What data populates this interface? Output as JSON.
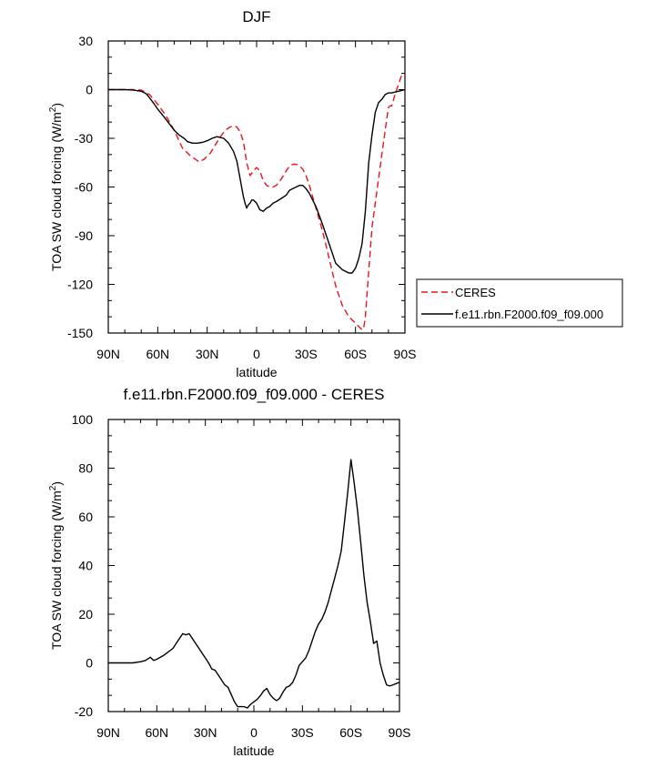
{
  "chart_data": [
    {
      "type": "line",
      "title": "DJF",
      "xlabel": "latitude",
      "ylabel": "TOA SW cloud forcing (W/m2)",
      "ylabel_main": "TOA SW cloud forcing (W/m",
      "ylabel_sup": "2",
      "ylabel_end": ")",
      "xlim": [
        -90,
        90
      ],
      "ylim": [
        -150,
        30
      ],
      "xticks": [
        -90,
        -60,
        -30,
        0,
        30,
        60,
        90
      ],
      "xtick_labels": [
        "90N",
        "60N",
        "30N",
        "0",
        "30S",
        "60S",
        "90S"
      ],
      "yticks": [
        30,
        0,
        -30,
        -60,
        -90,
        -120,
        -150
      ],
      "ytick_labels": [
        "30",
        "0",
        "-30",
        "-60",
        "-90",
        "-120",
        "-150"
      ],
      "legend_position": "right, outside plot",
      "series": [
        {
          "name": "CERES",
          "color": "#e8141c",
          "dash": true,
          "x": [
            -90,
            -80,
            -75,
            -70,
            -65,
            -60,
            -55,
            -50,
            -45,
            -40,
            -37,
            -35,
            -32,
            -28,
            -25,
            -22,
            -19,
            -16,
            -14,
            -12,
            -10,
            -8,
            -6,
            -4,
            -2,
            0,
            2,
            4,
            6,
            8,
            10,
            12,
            15,
            18,
            20,
            22,
            24,
            26,
            28,
            30,
            32,
            34,
            36,
            40,
            44,
            48,
            52,
            56,
            60,
            62,
            64,
            65,
            66,
            68,
            70,
            72,
            74,
            76,
            78,
            80,
            81,
            82,
            84,
            86,
            88,
            90
          ],
          "y": [
            0,
            0,
            0,
            -0.3,
            -3,
            -9,
            -16,
            -25,
            -36,
            -41,
            -43,
            -44.5,
            -43,
            -39,
            -34,
            -29,
            -25,
            -23,
            -22.5,
            -23,
            -26,
            -32,
            -45,
            -53,
            -50,
            -48,
            -50,
            -56,
            -59,
            -60,
            -60,
            -59,
            -55,
            -50,
            -47,
            -46,
            -46,
            -47,
            -49,
            -53,
            -59,
            -66,
            -73,
            -87,
            -104,
            -121,
            -133,
            -140,
            -144,
            -146,
            -148,
            -147,
            -140,
            -112,
            -85,
            -70,
            -55,
            -40,
            -25,
            -11,
            -10,
            -10,
            -3,
            3,
            9,
            9
          ]
        },
        {
          "name": "f.e11.rbn.F2000.f09_f09.000",
          "color": "#000000",
          "dash": false,
          "x": [
            -90,
            -80,
            -75,
            -70,
            -67,
            -65,
            -62,
            -60,
            -56,
            -53,
            -50,
            -47,
            -44,
            -42,
            -39,
            -36,
            -33,
            -30,
            -27,
            -24,
            -20,
            -17,
            -14,
            -12,
            -10,
            -8,
            -7,
            -6,
            -5,
            -4,
            -3,
            -2,
            0,
            2,
            4,
            6,
            8,
            10,
            12,
            15,
            18,
            20,
            22,
            24,
            26,
            28,
            30,
            32,
            34,
            36,
            40,
            44,
            48,
            52,
            56,
            58,
            60,
            62,
            64,
            66,
            68,
            70,
            72,
            74,
            76,
            78,
            80,
            82,
            84,
            86,
            88,
            90
          ],
          "y": [
            0,
            0,
            -0.2,
            -1,
            -2.5,
            -5,
            -9,
            -12,
            -17,
            -21,
            -25,
            -28,
            -30,
            -32,
            -33,
            -33,
            -32.5,
            -31.5,
            -30,
            -29,
            -30,
            -33,
            -38,
            -44,
            -55,
            -66,
            -70,
            -73,
            -71,
            -70,
            -68,
            -68,
            -70,
            -74,
            -75,
            -73,
            -72,
            -70,
            -69,
            -67,
            -65,
            -62,
            -61,
            -60,
            -59,
            -59,
            -61,
            -64,
            -68,
            -72,
            -83,
            -95,
            -107,
            -111,
            -113,
            -113,
            -110,
            -104,
            -95,
            -75,
            -45,
            -28,
            -14,
            -8,
            -6,
            -3,
            -2,
            -2,
            -1.5,
            -1,
            -0.5,
            0
          ]
        }
      ]
    },
    {
      "type": "line",
      "title": "f.e11.rbn.F2000.f09_f09.000 - CERES",
      "xlabel": "latitude",
      "ylabel": "TOA SW cloud forcing (W/m2)",
      "ylabel_main": "TOA SW cloud forcing (W/m",
      "ylabel_sup": "2",
      "ylabel_end": ")",
      "xlim": [
        -90,
        90
      ],
      "ylim": [
        -20,
        100
      ],
      "xticks": [
        -90,
        -60,
        -30,
        0,
        30,
        60,
        90
      ],
      "xtick_labels": [
        "90N",
        "60N",
        "30N",
        "0",
        "30S",
        "60S",
        "90S"
      ],
      "yticks": [
        100,
        80,
        60,
        40,
        20,
        0,
        -20
      ],
      "ytick_labels": [
        "100",
        "80",
        "60",
        "40",
        "20",
        "0",
        "-20"
      ],
      "series": [
        {
          "color": "#000000",
          "dash": false,
          "x": [
            -90,
            -80,
            -75,
            -70,
            -67,
            -64,
            -62,
            -60,
            -56,
            -53,
            -50,
            -47,
            -44,
            -42,
            -40,
            -38,
            -36,
            -34,
            -32,
            -30,
            -28,
            -26,
            -24,
            -22,
            -20,
            -18,
            -16,
            -14,
            -12,
            -10,
            -8,
            -6,
            -4,
            -2,
            0,
            2,
            4,
            6,
            8,
            10,
            12,
            14,
            16,
            18,
            20,
            22,
            24,
            26,
            28,
            30,
            32,
            34,
            36,
            38,
            40,
            42,
            44,
            46,
            48,
            50,
            52,
            54,
            56,
            58,
            60,
            62,
            64,
            66,
            68,
            70,
            72,
            74,
            76,
            78,
            80,
            82,
            84,
            86,
            88,
            90
          ],
          "y": [
            0,
            0,
            0,
            0.5,
            1,
            2.3,
            1,
            1.5,
            3,
            4.5,
            6,
            9,
            12,
            11.5,
            12,
            10,
            8,
            6,
            4,
            2,
            0,
            -2.5,
            -3,
            -5,
            -7,
            -9,
            -10,
            -13,
            -16,
            -18,
            -18,
            -18,
            -18.5,
            -17,
            -16,
            -15,
            -13.5,
            -11.5,
            -10.5,
            -13,
            -14.5,
            -15.5,
            -14.5,
            -12,
            -10,
            -9.5,
            -8,
            -5,
            -1,
            0.5,
            2,
            5,
            9,
            13,
            16,
            18,
            21,
            25,
            30,
            35,
            40,
            46,
            58,
            70,
            83.5,
            74,
            63,
            50,
            36,
            25,
            17,
            8,
            9,
            0,
            -5,
            -9,
            -9.5,
            -9,
            -8.5,
            -8
          ]
        }
      ]
    }
  ]
}
